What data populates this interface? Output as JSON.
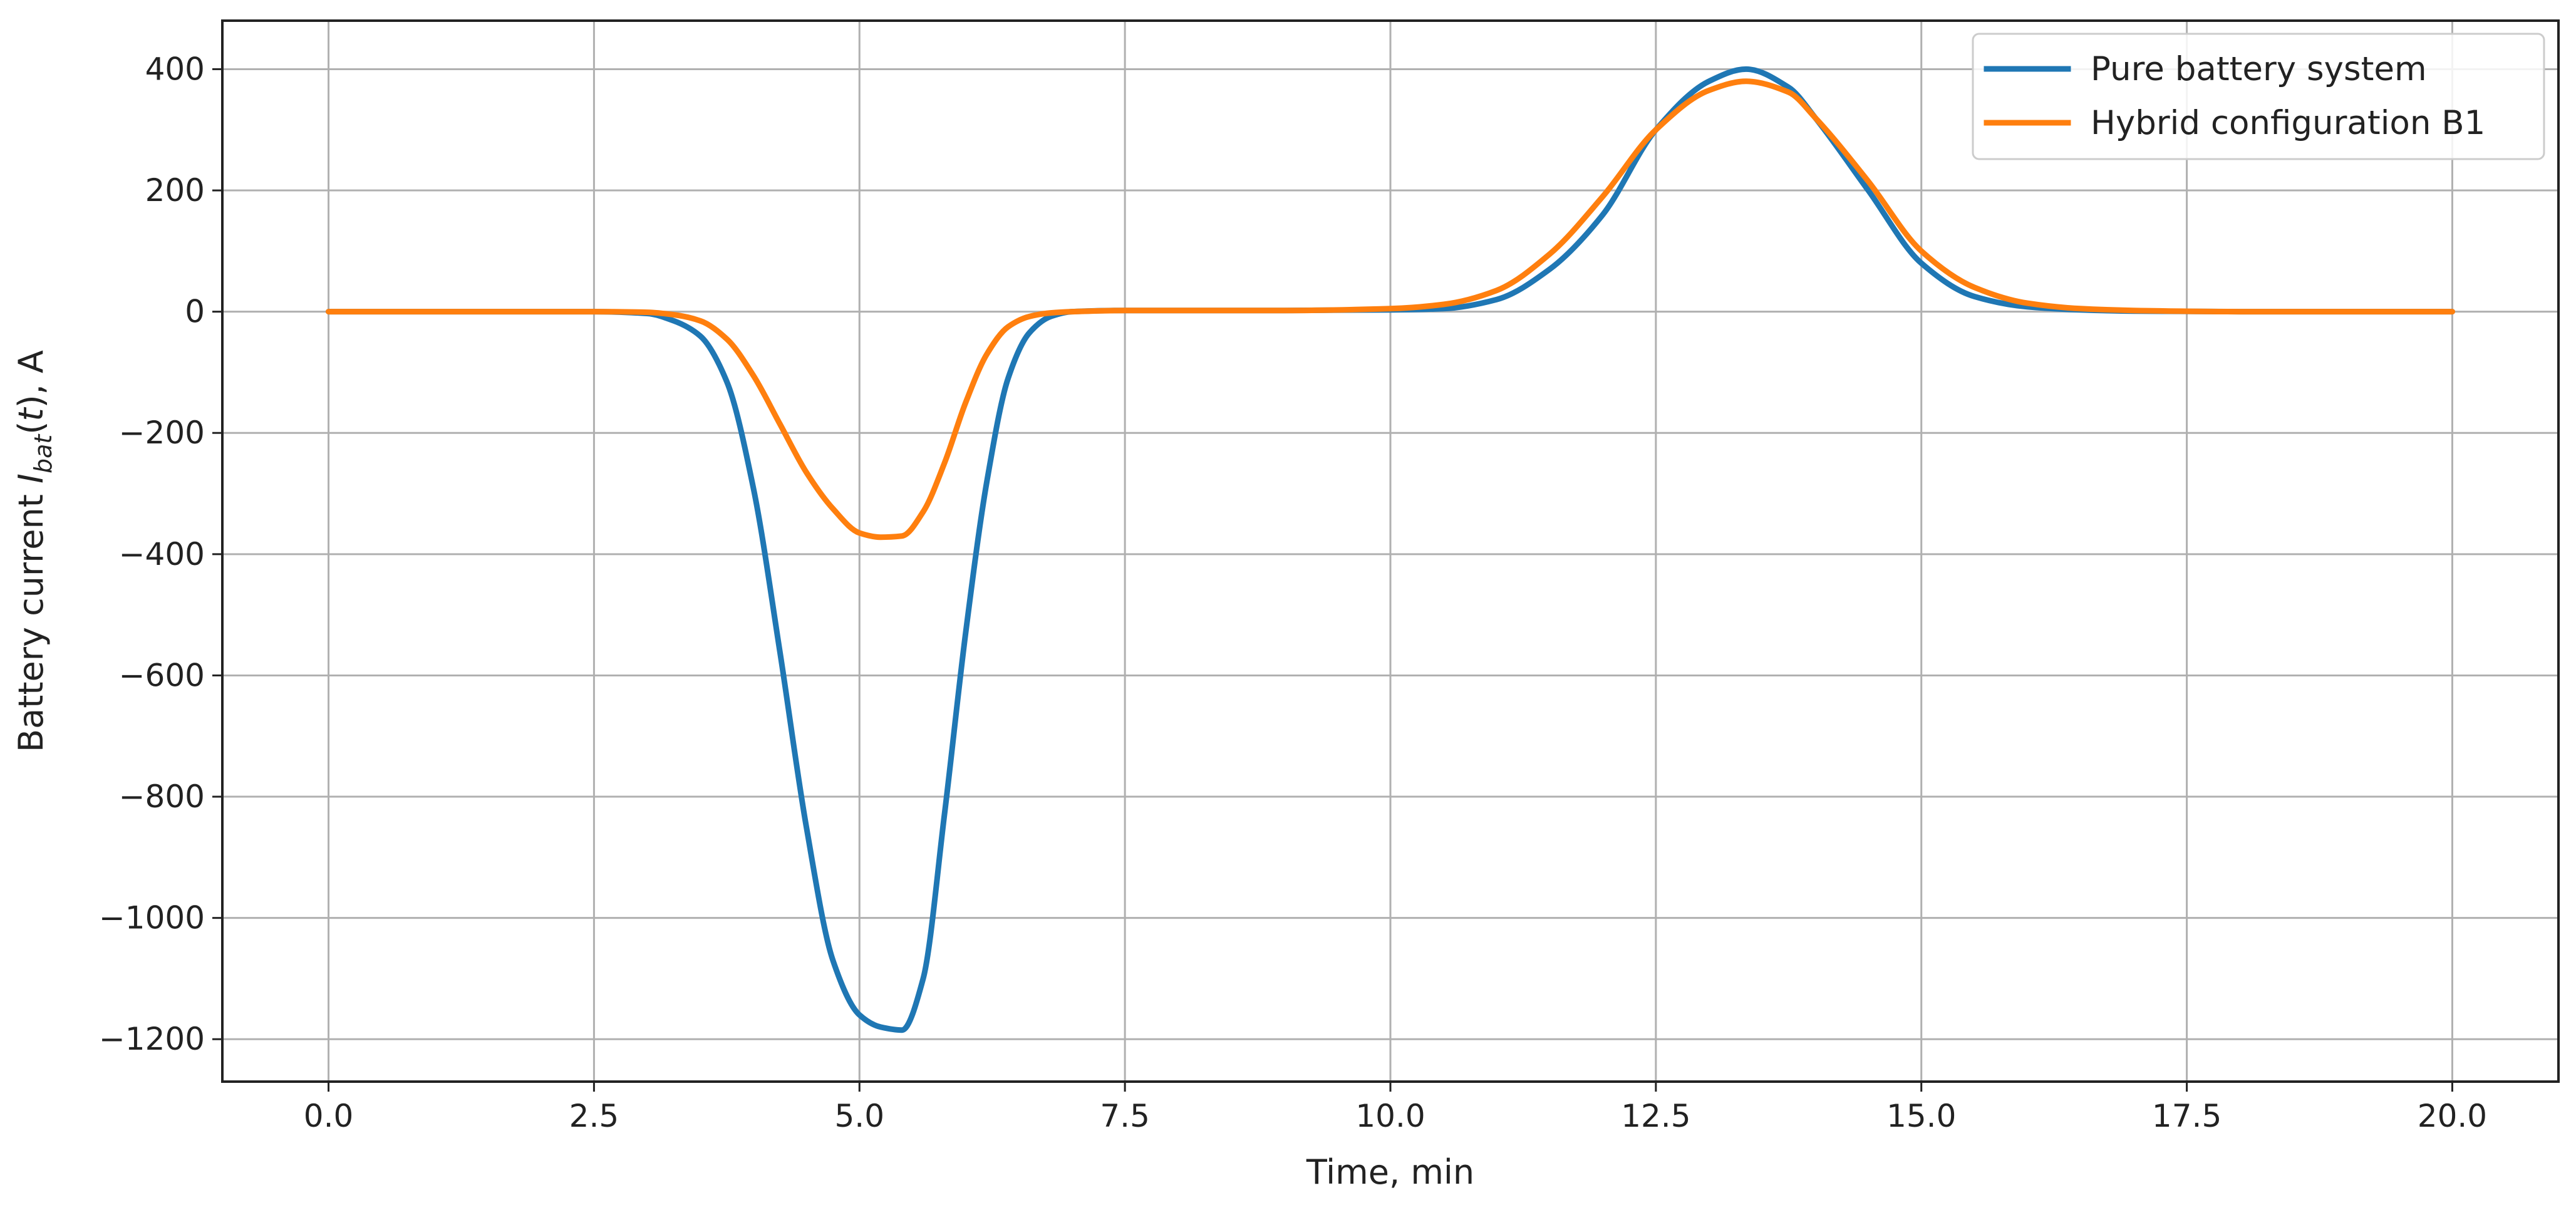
{
  "chart_data": {
    "type": "line",
    "title": "",
    "xlabel": "Time, min",
    "ylabel": {
      "prefix": "Battery current ",
      "symbol": "I",
      "subscript": "bat",
      "open": "(",
      "arg": "t",
      "close": ")",
      "suffix": ", A"
    },
    "xlim": [
      -1.0,
      21.0
    ],
    "ylim": [
      -1270,
      480
    ],
    "xticks": [
      0.0,
      2.5,
      5.0,
      7.5,
      10.0,
      12.5,
      15.0,
      17.5,
      20.0
    ],
    "xtick_labels": [
      "0.0",
      "2.5",
      "5.0",
      "7.5",
      "10.0",
      "12.5",
      "15.0",
      "17.5",
      "20.0"
    ],
    "yticks": [
      400,
      200,
      0,
      -200,
      -400,
      -600,
      -800,
      -1000,
      -1200
    ],
    "ytick_labels": [
      "400",
      "200",
      "0",
      "−200",
      "−400",
      "−600",
      "−800",
      "−1000",
      "−1200"
    ],
    "grid": true,
    "legend_position": "top-right",
    "series": [
      {
        "name": "Pure battery system",
        "color": "#1f77b4",
        "x": [
          0,
          1,
          2,
          2.5,
          3,
          3.25,
          3.5,
          3.75,
          4,
          4.25,
          4.5,
          4.75,
          5,
          5.2,
          5.4,
          5.6,
          5.8,
          6,
          6.2,
          6.4,
          6.6,
          6.8,
          7,
          7.5,
          8,
          9,
          10,
          10.5,
          11,
          11.5,
          12,
          12.5,
          13,
          13.35,
          13.75,
          14,
          14.5,
          15,
          15.5,
          16,
          16.5,
          17,
          18,
          19,
          20
        ],
        "y": [
          0,
          0,
          0,
          0,
          -3,
          -15,
          -40,
          -115,
          -290,
          -560,
          -850,
          -1070,
          -1160,
          -1180,
          -1185,
          -1100,
          -830,
          -530,
          -280,
          -110,
          -35,
          -8,
          0,
          2,
          2,
          2,
          3,
          5,
          20,
          70,
          160,
          300,
          380,
          400,
          370,
          320,
          200,
          80,
          25,
          8,
          3,
          1,
          0,
          0,
          0
        ]
      },
      {
        "name": "Hybrid configuration B1",
        "color": "#ff7f0e",
        "x": [
          0,
          1,
          2,
          2.5,
          3,
          3.25,
          3.5,
          3.75,
          4,
          4.25,
          4.5,
          4.75,
          5,
          5.2,
          5.4,
          5.6,
          5.8,
          6,
          6.2,
          6.4,
          6.6,
          6.8,
          7,
          7.5,
          8,
          9,
          10,
          10.5,
          11,
          11.5,
          12,
          12.5,
          13,
          13.35,
          13.75,
          14,
          14.5,
          15,
          15.5,
          16,
          16.5,
          17,
          18,
          19,
          20
        ],
        "y": [
          0,
          0,
          0,
          0,
          -1,
          -5,
          -15,
          -45,
          -105,
          -185,
          -265,
          -325,
          -365,
          -372,
          -370,
          -330,
          -250,
          -150,
          -70,
          -25,
          -8,
          -2,
          0,
          2,
          2,
          2,
          5,
          12,
          35,
          95,
          190,
          300,
          365,
          380,
          362,
          320,
          215,
          100,
          40,
          14,
          5,
          2,
          0,
          0,
          0
        ]
      }
    ]
  }
}
